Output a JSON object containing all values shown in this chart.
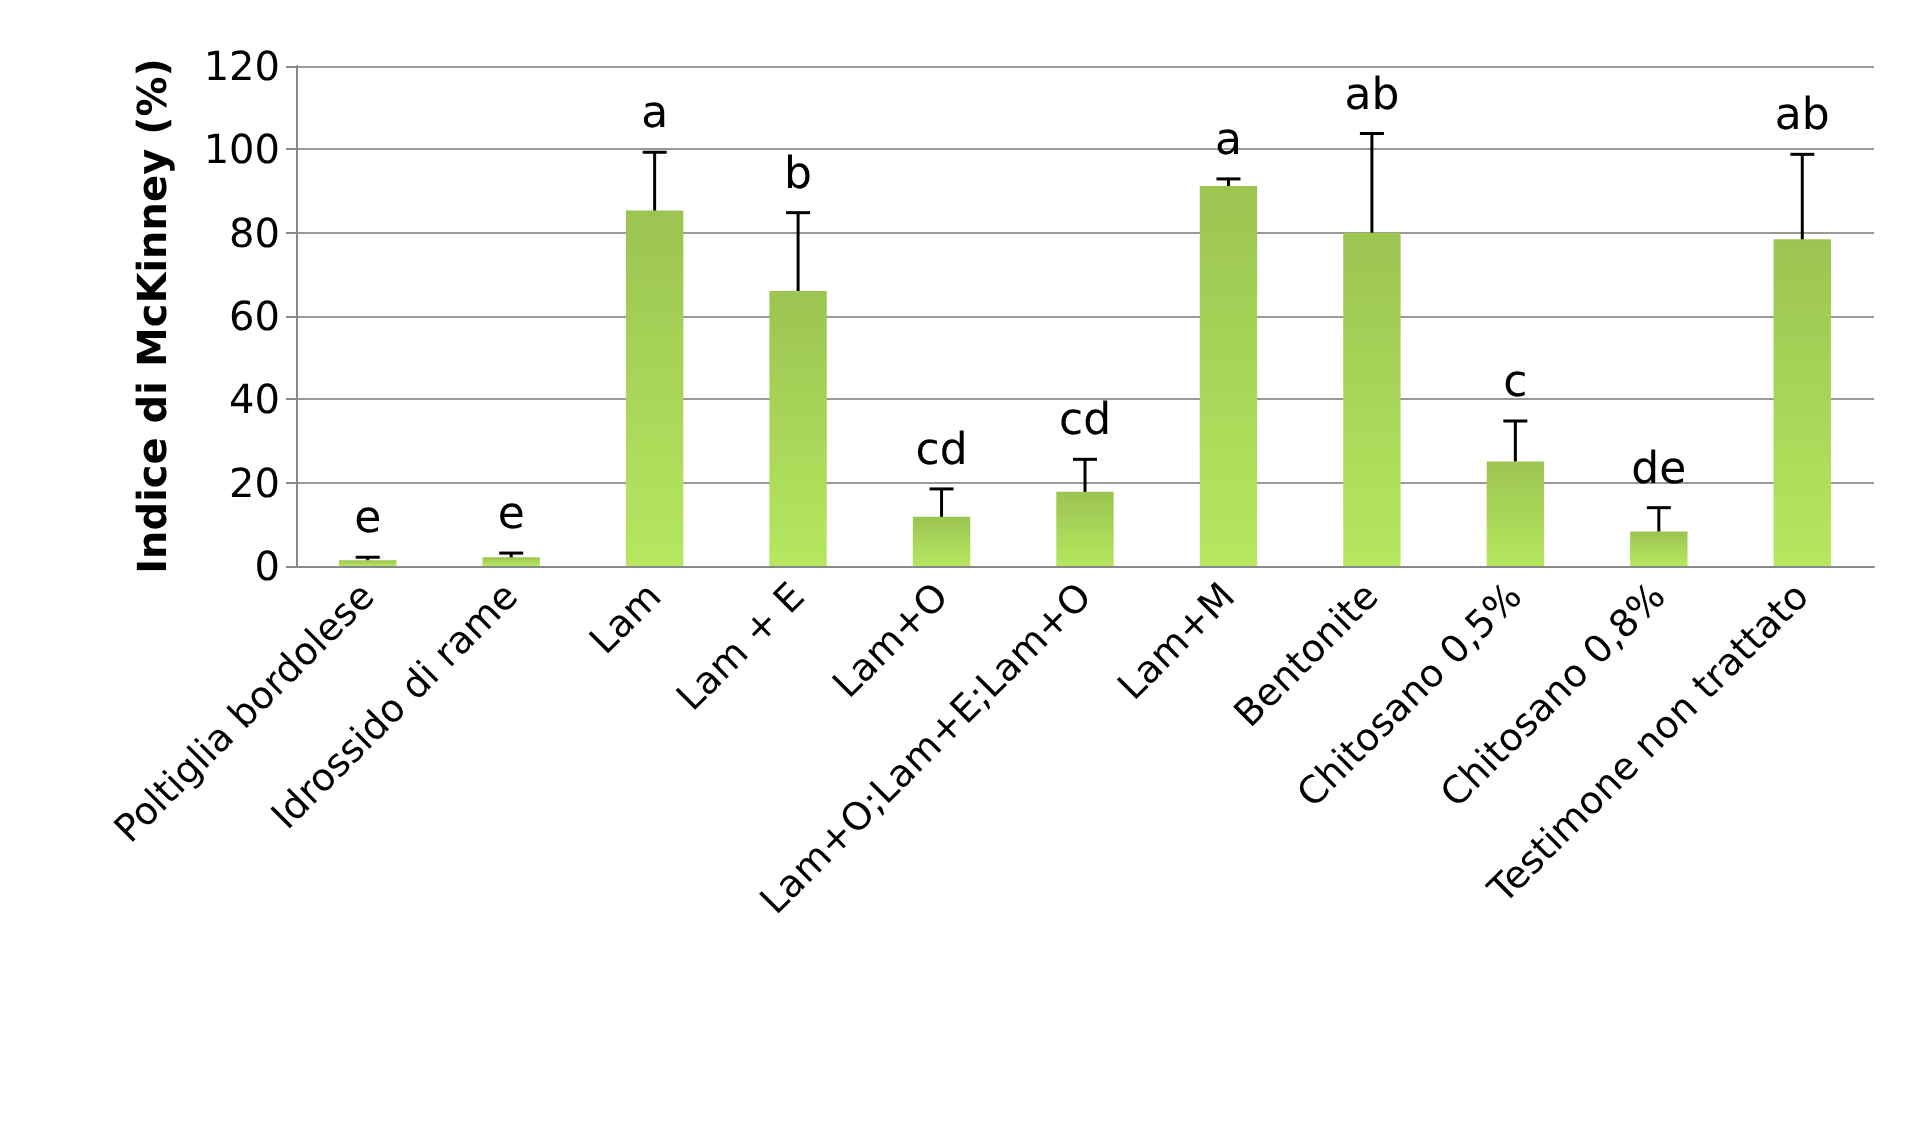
{
  "chart_data": {
    "type": "bar",
    "ylabel": "Indice di McKinney (%)",
    "categories": [
      "Poltiglia bordolese",
      "Idrossido di rame",
      "Lam",
      "Lam + E",
      "Lam+O",
      "Lam+O;Lam+E;Lam+O",
      "Lam+M",
      "Bentonite",
      "Chitosano 0,5%",
      "Chitosano 0,8%",
      "Testimone non trattato"
    ],
    "series": [
      {
        "color": "#9bc451",
        "values": [
          1.4,
          2.1,
          85.3,
          66,
          11.8,
          17.8,
          91.2,
          80,
          25.1,
          8.3,
          78.4
        ],
        "errors": [
          [
            1.4,
            2.1
          ],
          [
            2.1,
            3.1
          ],
          [
            85.3,
            99.3
          ],
          [
            66,
            84.8
          ],
          [
            11.8,
            18.5
          ],
          [
            17.8,
            25.6
          ],
          [
            91.2,
            92.9
          ],
          [
            80,
            103.8
          ],
          [
            25.1,
            34.8
          ],
          [
            8.3,
            14
          ],
          [
            78.4,
            98.8
          ]
        ]
      }
    ],
    "annotations": [
      {
        "text": "e",
        "x": "Poltiglia bordolese",
        "y": 2.1
      },
      {
        "text": "e",
        "x": "Idrossido di rame",
        "y": 3.1
      },
      {
        "text": "a",
        "x": "Lam",
        "y": 99.3
      },
      {
        "text": "b",
        "x": "Lam + E",
        "y": 84.8
      },
      {
        "text": "cd",
        "x": "Lam+O",
        "y": 18.5
      },
      {
        "text": "cd",
        "x": "Lam+O;Lam+E;Lam+O",
        "y": 25.6
      },
      {
        "text": "a",
        "x": "Lam+M",
        "y": 92.9
      },
      {
        "text": "ab",
        "x": "Bentonite",
        "y": 103.8
      },
      {
        "text": "c",
        "x": "Chitosano 0,5%",
        "y": 34.8
      },
      {
        "text": "de",
        "x": "Chitosano 0,8%",
        "y": 14
      },
      {
        "text": "ab",
        "x": "Testimone non trattato",
        "y": 98.8
      }
    ],
    "ylim": [
      0,
      120
    ],
    "yticks": [
      0,
      20,
      40,
      60,
      80,
      100,
      120
    ],
    "grid": "y"
  }
}
